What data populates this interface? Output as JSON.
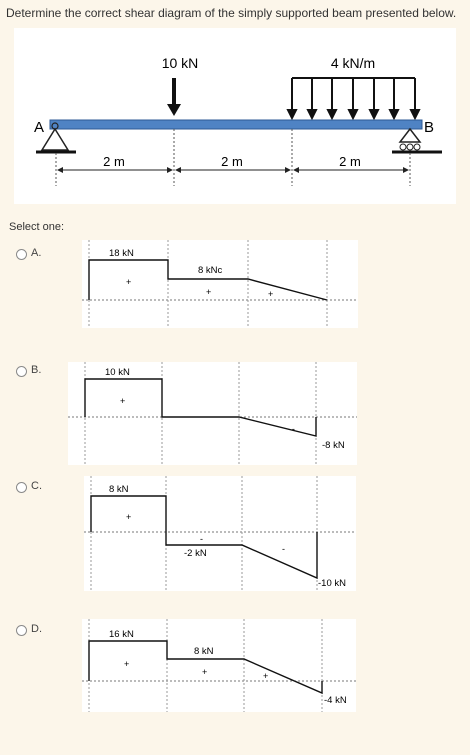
{
  "question": {
    "text": "Determine the correct shear diagram of the simply supported beam presented below."
  },
  "figure": {
    "point_load_label": "10 kN",
    "distributed_load_label": "4 kN/m",
    "support_left_label": "A",
    "support_right_label": "B",
    "span_labels": [
      "2 m",
      "2 m",
      "2 m"
    ],
    "beam_color": "#4f83c4"
  },
  "select_one_label": "Select one:",
  "options": [
    {
      "letter": "A.",
      "labels": {
        "first": "18 kN",
        "second": "8 kNc"
      },
      "signs": [
        "+",
        "+",
        "+"
      ]
    },
    {
      "letter": "B.",
      "labels": {
        "first": "10 kN",
        "last": "-8 kN"
      },
      "signs": [
        "+",
        "-"
      ]
    },
    {
      "letter": "C.",
      "labels": {
        "first": "8 kN",
        "second": "-2 kN",
        "last": "-10 kN"
      },
      "signs": [
        "+",
        "-",
        "-"
      ]
    },
    {
      "letter": "D.",
      "labels": {
        "first": "16 kN",
        "second": "8 kN",
        "last": "-4 kN"
      },
      "signs": [
        "+",
        "+",
        "+"
      ]
    }
  ]
}
